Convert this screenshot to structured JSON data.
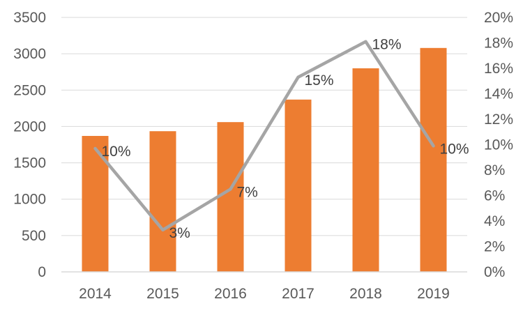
{
  "chart_data": {
    "type": "bar",
    "title": "",
    "xlabel": "",
    "ylabel": "",
    "y2label": "",
    "categories": [
      "2014",
      "2015",
      "2016",
      "2017",
      "2018",
      "2019"
    ],
    "ylim": [
      0,
      3500
    ],
    "yticks": [
      "0",
      "500",
      "1000",
      "1500",
      "2000",
      "2500",
      "3000",
      "3500"
    ],
    "y2lim": [
      0,
      0.2
    ],
    "y2ticks": [
      "0%",
      "2%",
      "4%",
      "6%",
      "8%",
      "10%",
      "12%",
      "14%",
      "16%",
      "18%",
      "20%"
    ],
    "grid": true,
    "legend": "none",
    "series": [
      {
        "type": "bar",
        "axis": "left",
        "color": "#ED7D31",
        "values": [
          1870,
          1935,
          2060,
          2370,
          2800,
          3080
        ]
      },
      {
        "type": "line",
        "axis": "right",
        "color": "#A5A5A5",
        "values": [
          0.097,
          0.033,
          0.065,
          0.153,
          0.181,
          0.099
        ],
        "labels": [
          "10%",
          "3%",
          "7%",
          "15%",
          "18%",
          "10%"
        ]
      }
    ]
  }
}
